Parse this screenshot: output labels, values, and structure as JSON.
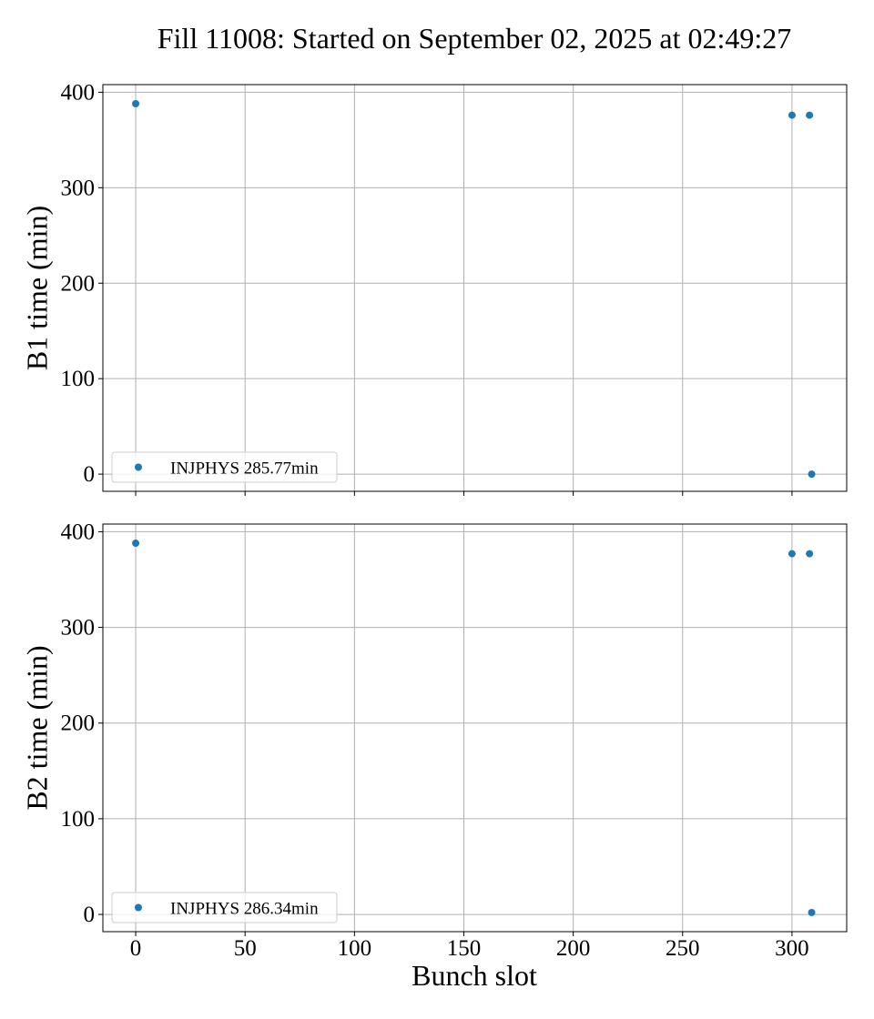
{
  "title": "Fill 11008: Started on September 02, 2025 at 02:49:27",
  "marker_color": "#1f77b4",
  "chart_data": [
    {
      "type": "scatter",
      "ylabel": "B1 time (min)",
      "xlabel": "",
      "xlim": [
        -15,
        325
      ],
      "ylim": [
        -18,
        408
      ],
      "xticks": [
        0,
        50,
        100,
        150,
        200,
        250,
        300
      ],
      "yticks": [
        0,
        100,
        200,
        300,
        400
      ],
      "show_x_tick_labels": false,
      "grid": true,
      "legend_placement": "lower-left",
      "series": [
        {
          "name": "INJPHYS 285.77min",
          "x": [
            0,
            300,
            308,
            309
          ],
          "y": [
            388,
            376,
            376,
            0
          ]
        }
      ]
    },
    {
      "type": "scatter",
      "ylabel": "B2 time (min)",
      "xlabel": "Bunch slot",
      "xlim": [
        -15,
        325
      ],
      "ylim": [
        -18,
        408
      ],
      "xticks": [
        0,
        50,
        100,
        150,
        200,
        250,
        300
      ],
      "yticks": [
        0,
        100,
        200,
        300,
        400
      ],
      "show_x_tick_labels": true,
      "grid": true,
      "legend_placement": "lower-left",
      "series": [
        {
          "name": "INJPHYS 286.34min",
          "x": [
            0,
            300,
            308,
            309
          ],
          "y": [
            388,
            377,
            377,
            2
          ]
        }
      ]
    }
  ]
}
